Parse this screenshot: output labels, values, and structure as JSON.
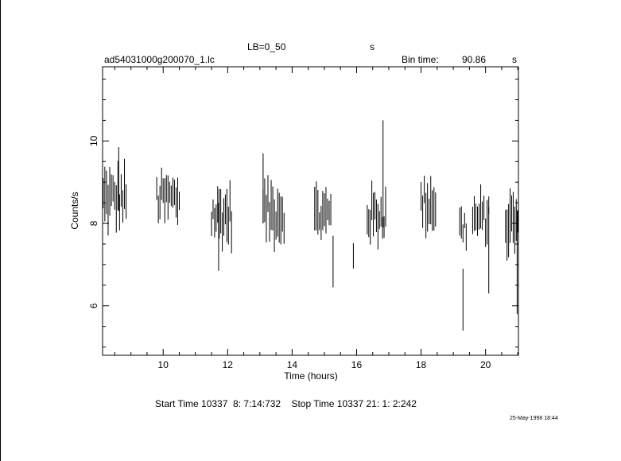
{
  "header": {
    "filter": "LB=0_50",
    "filter_unit": "s",
    "filename": "ad54031000g200070_1.lc",
    "bin_label": "Bin time:",
    "bin_value": "90.86",
    "bin_unit": "s"
  },
  "footer": {
    "times": "Start Time 10337  8: 7:14:732    Stop Time 10337 21: 1: 2:242",
    "date": "25-May-1998 18:44"
  },
  "chart_data": {
    "type": "scatter",
    "xlabel": "Time (hours)",
    "ylabel": "Counts/s",
    "xlim": [
      8.12,
      21.02
    ],
    "ylim": [
      4.8,
      11.8
    ],
    "xticks": [
      10,
      12,
      14,
      16,
      18,
      20
    ],
    "yticks": [
      6,
      8,
      10
    ],
    "grid": false,
    "segments": [
      {
        "start": 8.14,
        "end": 8.85,
        "mean": 8.6,
        "spread": 0.95,
        "bursts": [
          {
            "x": 8.62,
            "hi": 9.85
          }
        ]
      },
      {
        "start": 9.8,
        "end": 10.5,
        "mean": 8.6,
        "spread": 0.85,
        "bursts": []
      },
      {
        "start": 11.5,
        "end": 12.12,
        "mean": 8.2,
        "spread": 0.95,
        "bursts": [
          {
            "x": 11.72,
            "lo": 6.85
          }
        ]
      },
      {
        "start": 13.1,
        "end": 13.75,
        "mean": 8.3,
        "spread": 0.95,
        "bursts": [
          {
            "x": 13.1,
            "hi": 9.7
          }
        ]
      },
      {
        "start": 14.7,
        "end": 15.2,
        "mean": 8.2,
        "spread": 0.85,
        "bursts": [
          {
            "x": 15.27,
            "lo": 6.45,
            "hi": 7.7
          }
        ]
      },
      {
        "start": 15.9,
        "end": 15.9,
        "mean": 7.3,
        "spread": 0.55,
        "bursts": []
      },
      {
        "start": 16.33,
        "end": 16.9,
        "mean": 8.2,
        "spread": 0.85,
        "bursts": [
          {
            "x": 16.82,
            "hi": 10.5
          }
        ]
      },
      {
        "start": 18.0,
        "end": 18.45,
        "mean": 8.5,
        "spread": 0.85,
        "bursts": []
      },
      {
        "start": 19.2,
        "end": 19.4,
        "mean": 7.9,
        "spread": 0.7,
        "bursts": [
          {
            "x": 19.3,
            "lo": 5.4,
            "hi": 6.9
          }
        ]
      },
      {
        "start": 19.6,
        "end": 20.1,
        "mean": 8.1,
        "spread": 0.8,
        "bursts": [
          {
            "x": 20.1,
            "lo": 6.3
          }
        ]
      },
      {
        "start": 20.62,
        "end": 21.0,
        "mean": 8.0,
        "spread": 0.95,
        "bursts": [
          {
            "x": 20.98,
            "lo": 5.8
          }
        ]
      }
    ]
  }
}
